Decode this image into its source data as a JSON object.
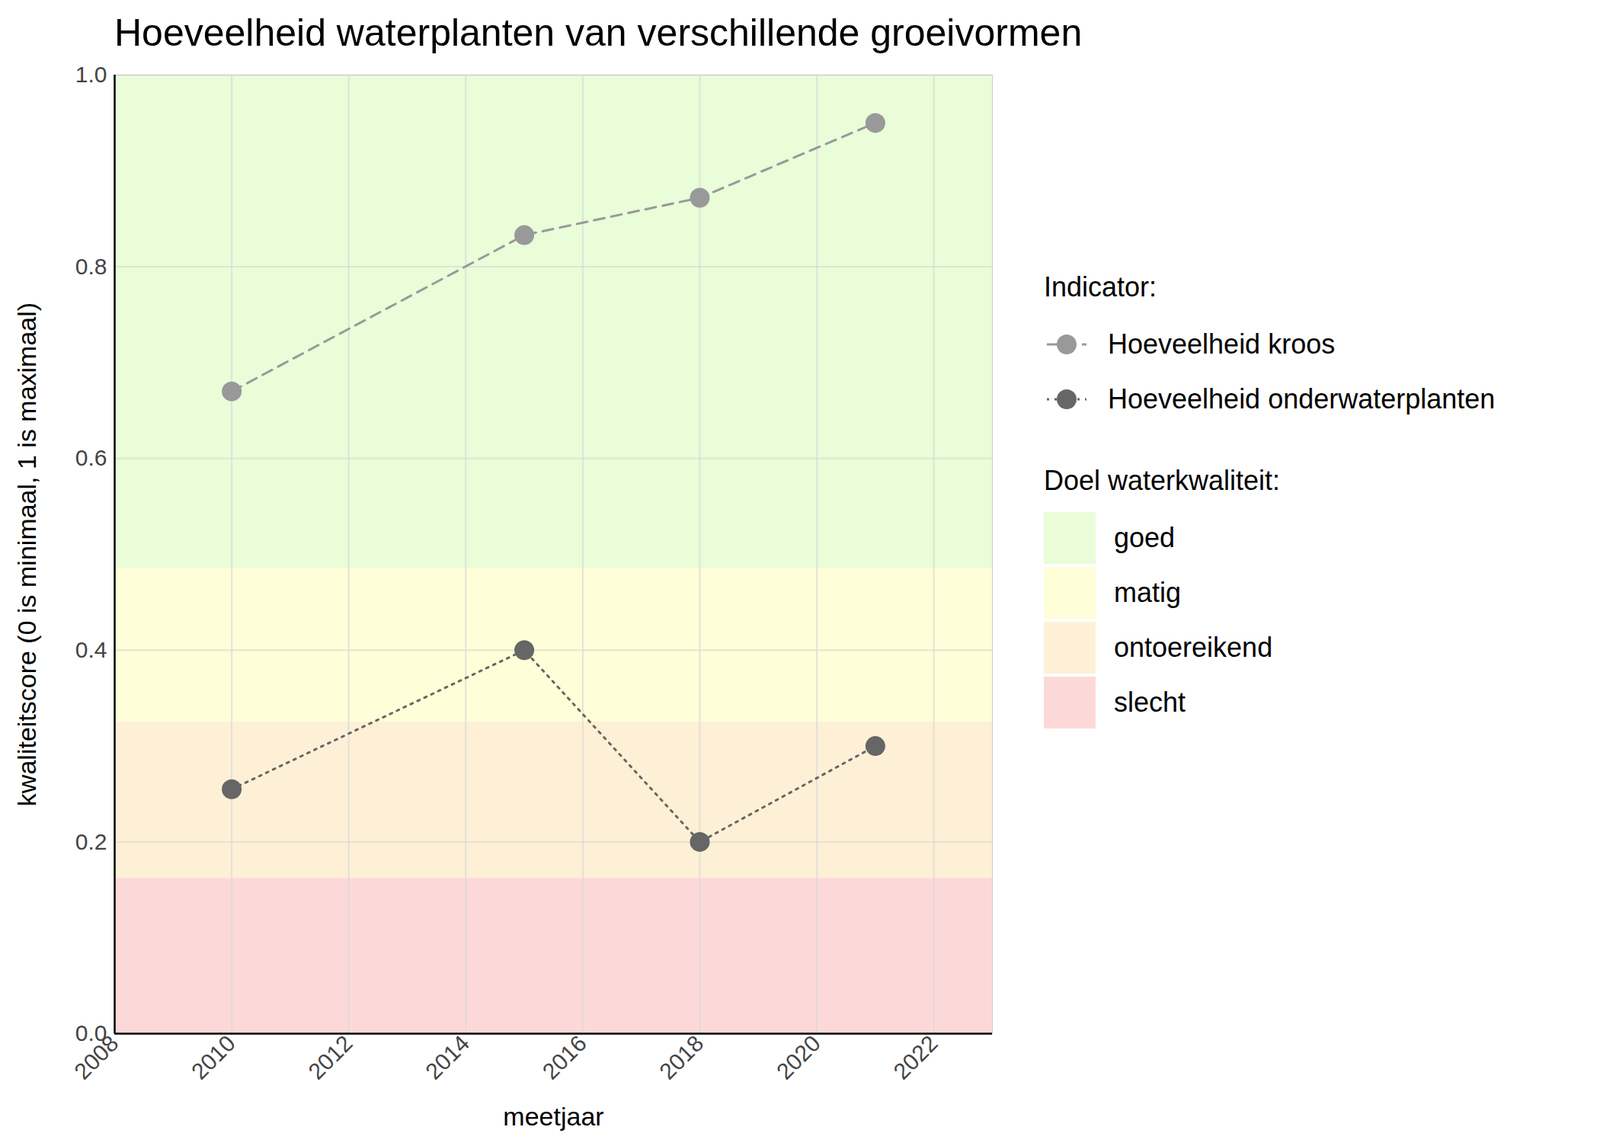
{
  "chart_data": {
    "type": "line",
    "title": "Hoeveelheid waterplanten van verschillende groeivormen",
    "x_label": "meetjaar",
    "y_label": "kwaliteitscore (0 is minimaal, 1 is maximaal)",
    "x": [
      2010,
      2015,
      2018,
      2021
    ],
    "series": [
      {
        "name": "Hoeveelheid kroos",
        "color": "#999999",
        "values": [
          0.67,
          0.833,
          0.872,
          0.95
        ],
        "line_style": "dashed",
        "marker": "circle"
      },
      {
        "name": "Hoeveelheid onderwaterplanten",
        "color": "#666666",
        "values": [
          0.255,
          0.4,
          0.2,
          0.3
        ],
        "line_style": "dotted",
        "marker": "circle"
      }
    ],
    "legend_title": "Indicator:",
    "bands_title": "Doel waterkwaliteit:",
    "bands": [
      {
        "name": "goed",
        "color": "#e8fdd8",
        "from": 0.485,
        "to": 1.0
      },
      {
        "name": "matig",
        "color": "#fefed8",
        "from": 0.325,
        "to": 0.485
      },
      {
        "name": "ontoereikend",
        "color": "#fdf0d6",
        "from": 0.162,
        "to": 0.325
      },
      {
        "name": "slecht",
        "color": "#fdd8d8",
        "from": 0,
        "to": 0.162
      }
    ],
    "xlim": [
      2008,
      2023
    ],
    "xticks": [
      2008,
      2010,
      2012,
      2014,
      2016,
      2018,
      2020,
      2022
    ],
    "ylim": [
      0,
      1
    ],
    "yticks": [
      {
        "value": 0,
        "label": "0.0"
      },
      0.2,
      0.4,
      0.6,
      0.8,
      {
        "value": 1,
        "label": "1.0"
      }
    ],
    "grid": true,
    "legend": "right"
  }
}
